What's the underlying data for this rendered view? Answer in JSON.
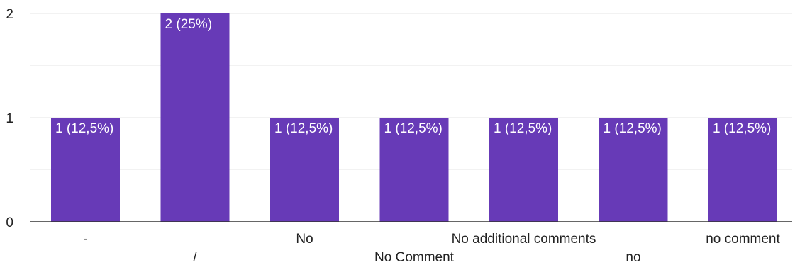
{
  "chart_data": {
    "type": "bar",
    "categories": [
      "-",
      "/",
      "No",
      "No Comment",
      "No additional comments",
      "no",
      "no comment"
    ],
    "values": [
      1,
      2,
      1,
      1,
      1,
      1,
      1
    ],
    "data_labels": [
      "1 (12,5%)",
      "2 (25%)",
      "1 (12,5%)",
      "1 (12,5%)",
      "1 (12,5%)",
      "1 (12,5%)",
      "1 (12,5%)"
    ],
    "yticks": [
      "0",
      "1",
      "2"
    ],
    "ylim": [
      0,
      2
    ],
    "grid": true,
    "legend": "none",
    "bar_color": "#673ab7"
  }
}
